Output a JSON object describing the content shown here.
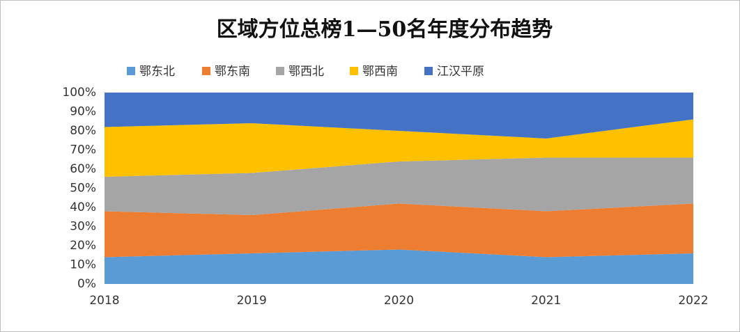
{
  "chart_data": {
    "type": "stacked_area_percent",
    "title": "区域方位总榜1—50名年度分布趋势",
    "categories": [
      "2018",
      "2019",
      "2020",
      "2021",
      "2022"
    ],
    "series": [
      {
        "name": "鄂东北",
        "color": "#5b9bd5",
        "values": [
          14,
          16,
          18,
          14,
          16
        ]
      },
      {
        "name": "鄂东南",
        "color": "#ed7d31",
        "values": [
          24,
          20,
          24,
          24,
          26
        ]
      },
      {
        "name": "鄂西北",
        "color": "#a5a5a5",
        "values": [
          18,
          22,
          22,
          28,
          24
        ]
      },
      {
        "name": "鄂西南",
        "color": "#ffc000",
        "values": [
          26,
          26,
          16,
          10,
          20
        ]
      },
      {
        "name": "江汉平原",
        "color": "#4472c4",
        "values": [
          18,
          16,
          20,
          24,
          14
        ]
      }
    ],
    "ylim": [
      0,
      100
    ],
    "yticks": [
      {
        "value": 0,
        "label": "0%"
      },
      {
        "value": 10,
        "label": "10%"
      },
      {
        "value": 20,
        "label": "20%"
      },
      {
        "value": 30,
        "label": "30%"
      },
      {
        "value": 40,
        "label": "40%"
      },
      {
        "value": 50,
        "label": "50%"
      },
      {
        "value": 60,
        "label": "60%"
      },
      {
        "value": 70,
        "label": "70%"
      },
      {
        "value": 80,
        "label": "80%"
      },
      {
        "value": 90,
        "label": "90%"
      },
      {
        "value": 100,
        "label": "100%"
      }
    ],
    "legend": "top",
    "grid": false
  }
}
